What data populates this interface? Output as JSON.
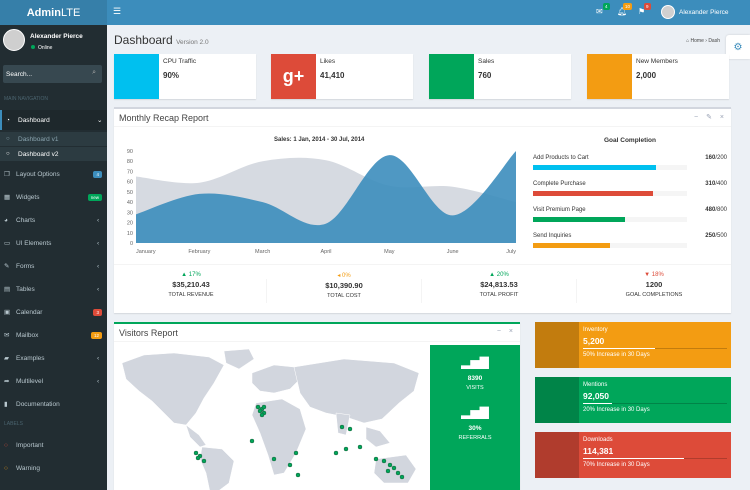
{
  "logo": {
    "bold": "Admin",
    "light": "LTE"
  },
  "navbar": {
    "messages_count": "4",
    "notifications_count": "10",
    "tasks_count": "9",
    "user_name": "Alexander Pierce",
    "colors": {
      "messages": "#00a65a",
      "notifications": "#f39c12",
      "tasks": "#dd4b39"
    }
  },
  "sidebar": {
    "user_name": "Alexander Pierce",
    "status": "Online",
    "search_placeholder": "Search...",
    "main_header": "MAIN NAVIGATION",
    "labels_header": "LABELS",
    "dashboard": "Dashboard",
    "dashboard_v1": "Dashboard v1",
    "dashboard_v2": "Dashboard v2",
    "layout_options": "Layout Options",
    "layout_badge": "4",
    "widgets": "Widgets",
    "widgets_badge": "new",
    "charts": "Charts",
    "ui_elements": "UI Elements",
    "forms": "Forms",
    "tables": "Tables",
    "calendar": "Calendar",
    "calendar_badge": "3",
    "mailbox": "Mailbox",
    "mailbox_badge": "12",
    "examples": "Examples",
    "multilevel": "Multilevel",
    "documentation": "Documentation",
    "important": "Important",
    "warning": "Warning"
  },
  "page": {
    "title": "Dashboard",
    "version": "Version 2.0",
    "breadcrumb_home": "Home",
    "breadcrumb_current": "Dash"
  },
  "info_boxes": [
    {
      "label": "CPU Traffic",
      "value": "90%",
      "color": "#00c0ef",
      "icon": "gear-icon"
    },
    {
      "label": "Likes",
      "value": "41,410",
      "color": "#dd4b39",
      "icon": "google-plus-icon",
      "glyph": "g+"
    },
    {
      "label": "Sales",
      "value": "760",
      "color": "#00a65a",
      "icon": "shopping-cart-icon"
    },
    {
      "label": "New Members",
      "value": "2,000",
      "color": "#f39c12",
      "icon": "users-icon"
    }
  ],
  "recap": {
    "title": "Monthly Recap Report",
    "chart_title": "Sales: 1 Jan, 2014 - 30 Jul, 2014",
    "goal_title": "Goal Completion",
    "goals": [
      {
        "label": "Add Products to Cart",
        "done": "160",
        "total": "/200",
        "fraction": 0.8,
        "color": "#00c0ef"
      },
      {
        "label": "Complete Purchase",
        "done": "310",
        "total": "/400",
        "fraction": 0.78,
        "color": "#dd4b39"
      },
      {
        "label": "Visit Premium Page",
        "done": "480",
        "total": "/800",
        "fraction": 0.6,
        "color": "#00a65a"
      },
      {
        "label": "Send Inquiries",
        "done": "250",
        "total": "/500",
        "fraction": 0.5,
        "color": "#f39c12"
      }
    ],
    "stats": [
      {
        "pct": "17%",
        "arrow": "▲",
        "color": "#00a65a",
        "amount": "$35,210.43",
        "label": "TOTAL REVENUE"
      },
      {
        "pct": "0%",
        "arrow": "◂",
        "color": "#f39c12",
        "amount": "$10,390.90",
        "label": "TOTAL COST"
      },
      {
        "pct": "20%",
        "arrow": "▲",
        "color": "#00a65a",
        "amount": "$24,813.53",
        "label": "TOTAL PROFIT"
      },
      {
        "pct": "18%",
        "arrow": "▼",
        "color": "#dd4b39",
        "amount": "1200",
        "label": "GOAL COMPLETIONS"
      }
    ]
  },
  "chart_data": {
    "type": "area",
    "title": "Sales: 1 Jan, 2014 - 30 Jul, 2014",
    "categories": [
      "January",
      "February",
      "March",
      "April",
      "May",
      "June",
      "July"
    ],
    "ylim": [
      0,
      90
    ],
    "yticks": [
      "0",
      "10",
      "20",
      "30",
      "40",
      "50",
      "60",
      "70",
      "80",
      "90"
    ],
    "series": [
      {
        "values": [
          65,
          59,
          80,
          81,
          56,
          55,
          40
        ],
        "color": "#d2d6de"
      },
      {
        "values": [
          28,
          48,
          40,
          19,
          86,
          27,
          90
        ],
        "color": "#3c8dbc"
      }
    ],
    "grid": false,
    "legend": "none"
  },
  "visitors": {
    "title": "Visitors Report",
    "visits": "8390",
    "visits_label": "VISITS",
    "referrals": "30%",
    "referrals_label": "REFERRALS"
  },
  "side_boxes": [
    {
      "label": "Inventory",
      "value": "5,200",
      "desc": "50% Increase in 30 Days",
      "fraction": 0.5,
      "color": "#f39c12",
      "icon": "tag-icon"
    },
    {
      "label": "Mentions",
      "value": "92,050",
      "desc": "20% Increase in 30 Days",
      "fraction": 0.2,
      "color": "#00a65a",
      "icon": "heart-icon"
    },
    {
      "label": "Downloads",
      "value": "114,381",
      "desc": "70% Increase in 30 Days",
      "fraction": 0.7,
      "color": "#dd4b39",
      "icon": "cloud-download-icon"
    }
  ]
}
